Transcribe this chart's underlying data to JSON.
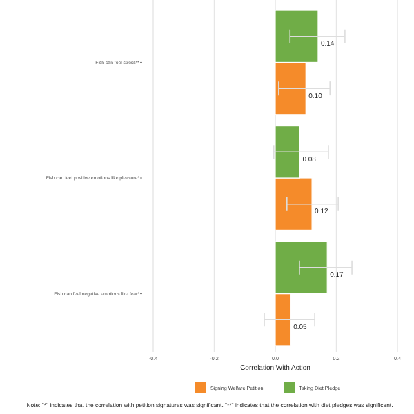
{
  "chart_data": {
    "type": "bar",
    "orientation": "horizontal",
    "xlabel": "Correlation With Action",
    "categories": [
      "Fish can feel stress**",
      "Fish can feel positive emotions like pleasure*",
      "Fish can feel negative emotions like fear*"
    ],
    "series": [
      {
        "name": "Signing Welfare Petition",
        "color": "#f58b2a",
        "values": [
          0.1,
          0.12,
          0.05
        ],
        "errors": [
          [
            0.011,
            0.179
          ],
          [
            0.038,
            0.206
          ],
          [
            -0.036,
            0.129
          ]
        ],
        "value_labels": [
          "0.10",
          "0.12",
          "0.05"
        ]
      },
      {
        "name": "Taking Diet Pledge",
        "color": "#70ad47",
        "values": [
          0.14,
          0.08,
          0.17
        ],
        "errors": [
          [
            0.048,
            0.228
          ],
          [
            -0.005,
            0.174
          ],
          [
            0.079,
            0.251
          ]
        ],
        "value_labels": [
          "0.14",
          "0.08",
          "0.17"
        ]
      }
    ],
    "xlim": [
      -0.4,
      0.4
    ],
    "xticks": [
      {
        "value": -0.4,
        "label": "-0.4"
      },
      {
        "value": -0.2,
        "label": "-0.2"
      },
      {
        "value": 0,
        "label": "0.0"
      },
      {
        "value": 0.2,
        "label": "0.2"
      },
      {
        "value": 0.4,
        "label": "0.4"
      }
    ],
    "grid": "x",
    "legend": "bottom",
    "annotations": [
      "Note: \"*\" indicates that the correlation with petition signatures was significant. \"**\" indicates that the correlation with diet pledges was significant."
    ]
  }
}
